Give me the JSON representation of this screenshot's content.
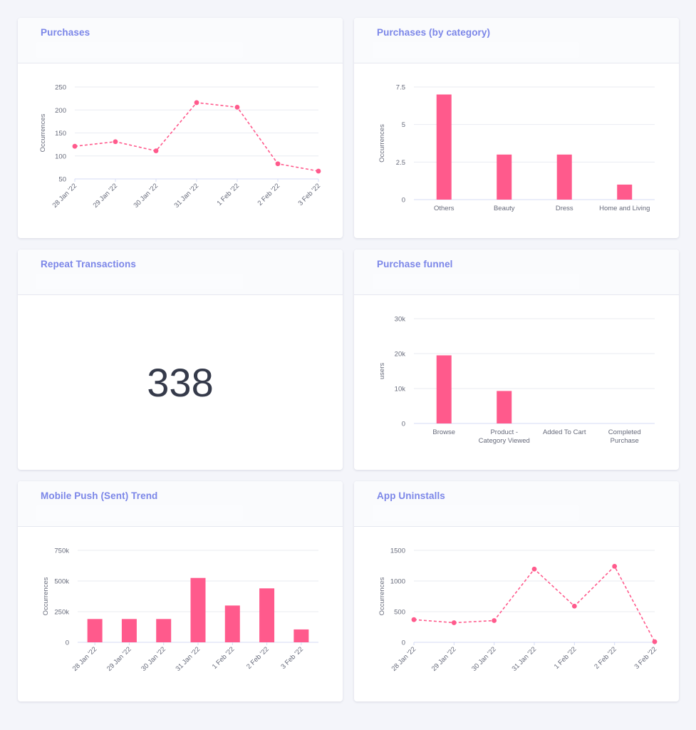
{
  "colors": {
    "accent": "#ff5a8c",
    "title": "#7b86e8",
    "grid": "#e9ebf2",
    "axis": "#d6dbf5",
    "tick": "#666a7a"
  },
  "cards": {
    "purchases": {
      "title": "Purchases"
    },
    "purchases_by_category": {
      "title": "Purchases (by category)"
    },
    "repeat_transactions": {
      "title": "Repeat Transactions",
      "value": "338"
    },
    "purchase_funnel": {
      "title": "Purchase funnel"
    },
    "mobile_push_trend": {
      "title": "Mobile Push (Sent) Trend"
    },
    "app_uninstalls": {
      "title": "App Uninstalls"
    }
  },
  "chart_data": [
    {
      "id": "purchases",
      "type": "line",
      "categories": [
        "28 Jan '22",
        "29 Jan '22",
        "30 Jan '22",
        "31 Jan '22",
        "1 Feb '22",
        "2 Feb '22",
        "3 Feb '22"
      ],
      "values": [
        121,
        131,
        111,
        216,
        206,
        83,
        67
      ],
      "ylabel": "Occurrences",
      "ylim": [
        50,
        250
      ],
      "yticks": [
        50,
        100,
        150,
        200,
        250
      ],
      "ytick_labels": [
        "50",
        "100",
        "150",
        "200",
        "250"
      ],
      "grid": true,
      "line_style": "dashed"
    },
    {
      "id": "purchases_by_category",
      "type": "bar",
      "categories": [
        "Others",
        "Beauty",
        "Dress",
        "Home and Living"
      ],
      "values": [
        7,
        3,
        3,
        1
      ],
      "ylabel": "Occurrences",
      "ylim": [
        0,
        7.5
      ],
      "yticks": [
        0,
        2.5,
        5,
        7.5
      ],
      "ytick_labels": [
        "0",
        "2.5",
        "5",
        "7.5"
      ],
      "grid": true
    },
    {
      "id": "purchase_funnel",
      "type": "bar",
      "categories": [
        "Browse",
        "Product -\nCategory Viewed",
        "Added To Cart",
        "Completed\nPurchase"
      ],
      "values": [
        19500,
        9300,
        0,
        0
      ],
      "ylabel": "users",
      "ylim": [
        0,
        30000
      ],
      "yticks": [
        0,
        10000,
        20000,
        30000
      ],
      "ytick_labels": [
        "0",
        "10k",
        "20k",
        "30k"
      ],
      "grid": true
    },
    {
      "id": "mobile_push_trend",
      "type": "bar",
      "categories": [
        "28 Jan '22",
        "29 Jan '22",
        "30 Jan '22",
        "31 Jan '22",
        "1 Feb '22",
        "2 Feb '22",
        "3 Feb '22"
      ],
      "values": [
        190000,
        190000,
        190000,
        525000,
        300000,
        440000,
        105000
      ],
      "ylabel": "Occurrences",
      "ylim": [
        0,
        750000
      ],
      "yticks": [
        0,
        250000,
        500000,
        750000
      ],
      "ytick_labels": [
        "0",
        "250k",
        "500k",
        "750k"
      ],
      "grid": true
    },
    {
      "id": "app_uninstalls",
      "type": "line",
      "categories": [
        "28 Jan '22",
        "29 Jan '22",
        "30 Jan '22",
        "31 Jan '22",
        "1 Feb '22",
        "2 Feb '22",
        "3 Feb '22"
      ],
      "values": [
        370,
        320,
        355,
        1195,
        590,
        1240,
        10
      ],
      "ylabel": "Occurrences",
      "ylim": [
        0,
        1500
      ],
      "yticks": [
        0,
        500,
        1000,
        1500
      ],
      "ytick_labels": [
        "0",
        "500",
        "1000",
        "1500"
      ],
      "grid": true,
      "line_style": "dashed"
    }
  ]
}
